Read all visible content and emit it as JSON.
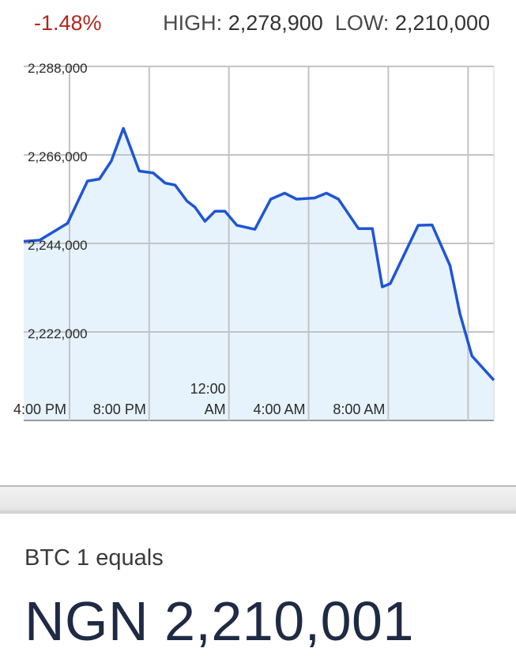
{
  "header": {
    "change": "-1.48%",
    "high_label": "HIGH:",
    "high_value": "2,278,900",
    "low_label": "LOW:",
    "low_value": "2,210,000"
  },
  "chart_data": {
    "type": "area",
    "y_tick_labels": [
      "2,288,000",
      "2,266,000",
      "2,244,000",
      "2,222,000"
    ],
    "y_ticks": [
      2288000,
      2266000,
      2244000,
      2222000
    ],
    "ylim": [
      2200000,
      2288000
    ],
    "x_tick_labels": [
      "4:00 PM",
      "8:00 PM",
      "12:00 AM",
      "4:00 AM",
      "8:00 AM"
    ],
    "xlim_hours": [
      -6.3,
      17.3
    ],
    "x_ticks_hours": [
      -4,
      0,
      4,
      8,
      12
    ],
    "grid": true,
    "line_color": "#1f55d6",
    "fill_color": "#e6f3fc",
    "series": [
      {
        "x_hours": [
          -6.3,
          -5.5,
          -4.1,
          -3.1,
          -2.5,
          -1.9,
          -1.3,
          -0.5,
          0.2,
          0.8,
          1.3,
          1.9,
          2.3,
          2.8,
          3.3,
          3.8,
          4.4,
          5.3,
          6.1,
          6.8,
          7.4,
          8.3,
          8.9,
          9.5,
          10.5,
          11.2,
          11.7,
          12.1,
          13.5,
          14.2,
          15.1,
          15.6,
          16.2,
          17.3
        ],
        "values": [
          2244500,
          2244800,
          2249000,
          2259500,
          2260000,
          2264500,
          2272600,
          2262000,
          2261500,
          2259000,
          2258500,
          2254500,
          2253000,
          2249500,
          2252000,
          2252000,
          2248500,
          2247500,
          2255000,
          2256500,
          2255000,
          2255300,
          2256500,
          2255000,
          2247700,
          2247700,
          2233200,
          2234000,
          2248500,
          2248600,
          2238500,
          2226500,
          2216000,
          2210000
        ]
      }
    ]
  },
  "conversion": {
    "label": "BTC 1 equals",
    "result": "NGN 2,210,001"
  }
}
